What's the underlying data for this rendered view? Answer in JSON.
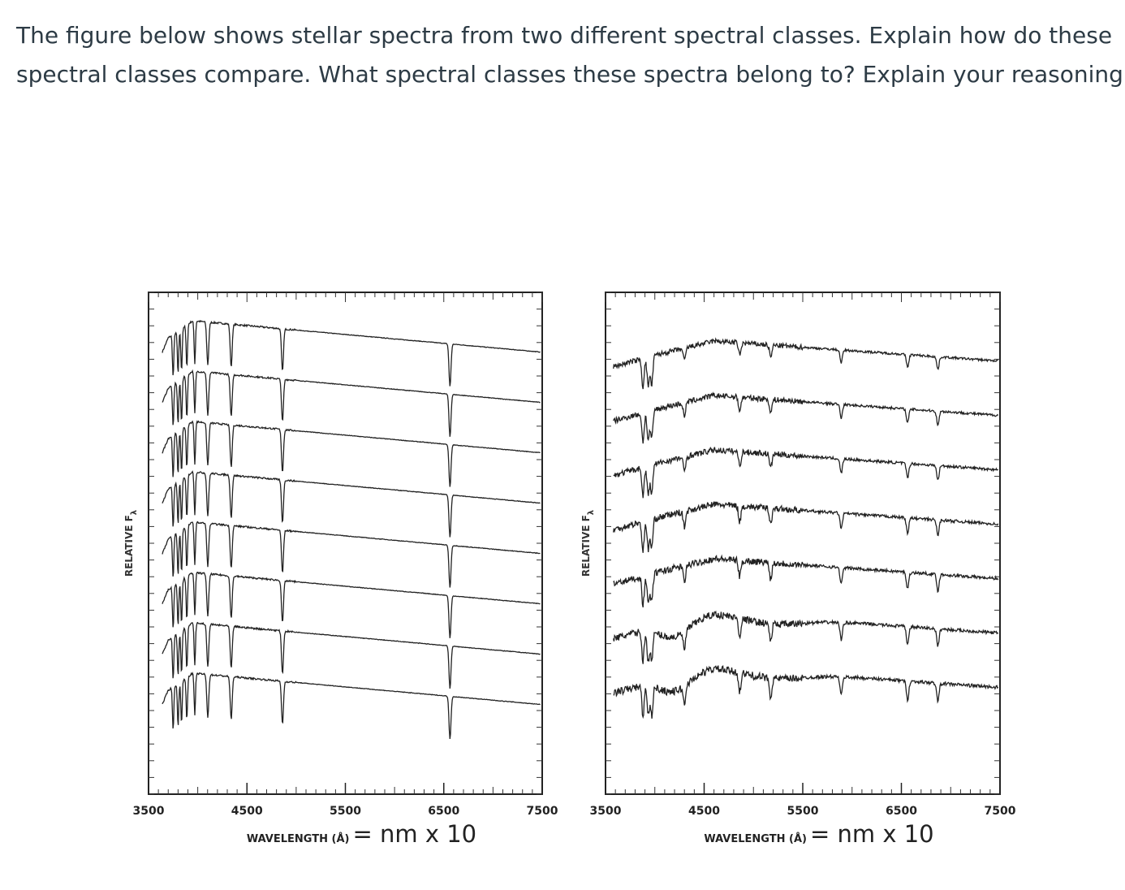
{
  "question": {
    "lines": [
      "The figure below shows stellar spectra from two different spectral classes. Explain how do these",
      "spectral classes compare. What spectral classes these spectra belong to? Explain your reasoning."
    ]
  },
  "figure": {
    "panels": [
      {
        "y_label": "RELATIVE F",
        "y_label_sub": "λ",
        "x_ticks": [
          3500,
          4500,
          5500,
          6500,
          7500
        ],
        "x_label": "WAVELENGTH (Å)",
        "x_label_note": "= nm x 10"
      },
      {
        "y_label": "RELATIVE F",
        "y_label_sub": "λ",
        "x_ticks": [
          3500,
          4500,
          5500,
          6500,
          7500
        ],
        "x_label": "WAVELENGTH (Å)",
        "x_label_note": "= nm x 10"
      }
    ]
  }
}
